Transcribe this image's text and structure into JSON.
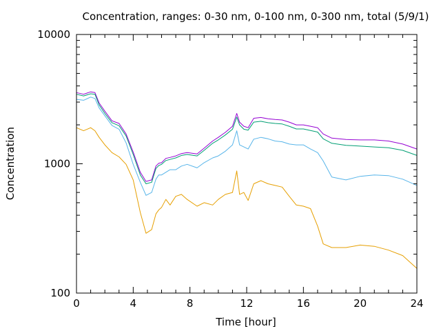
{
  "chart_data": {
    "type": "line",
    "title": "Concentration, ranges: 0-30 nm, 0-100 nm, 0-300 nm, total (5/9/1)",
    "xlabel": "Time [hour]",
    "ylabel": "Concentration",
    "xlim": [
      0,
      24
    ],
    "ylim": [
      100,
      10000
    ],
    "yscale": "log",
    "grid": false,
    "legend": "none",
    "xticks": [
      0,
      4,
      8,
      12,
      16,
      20,
      24
    ],
    "xtick_labels": [
      "0",
      "4",
      "8",
      "12",
      "16",
      "20",
      "24"
    ],
    "yticks": [
      100,
      1000,
      10000
    ],
    "ytick_labels": [
      "100",
      "1000",
      "10000"
    ],
    "series": [
      {
        "color": "#9400d3",
        "x": [
          0,
          0.5,
          1.0,
          1.3,
          1.6,
          2.0,
          2.5,
          3.0,
          3.5,
          4.0,
          4.5,
          4.9,
          5.3,
          5.6,
          5.8,
          6.0,
          6.3,
          6.6,
          7.0,
          7.4,
          7.8,
          8.5,
          9.0,
          9.6,
          10.0,
          10.5,
          11.0,
          11.3,
          11.5,
          11.8,
          12.1,
          12.5,
          13.0,
          13.5,
          14.0,
          14.5,
          15.0,
          15.5,
          16.0,
          16.5,
          17.0,
          17.4,
          18.0,
          19.0,
          20.0,
          21.0,
          22.0,
          23.0,
          24.0
        ],
        "y": [
          3550,
          3450,
          3600,
          3550,
          2950,
          2550,
          2150,
          2050,
          1700,
          1230,
          860,
          730,
          750,
          960,
          1010,
          1020,
          1100,
          1120,
          1150,
          1200,
          1220,
          1190,
          1320,
          1500,
          1600,
          1750,
          1950,
          2450,
          2100,
          1950,
          1900,
          2250,
          2280,
          2230,
          2200,
          2180,
          2100,
          2000,
          2000,
          1950,
          1900,
          1700,
          1580,
          1540,
          1530,
          1530,
          1500,
          1420,
          1300
        ]
      },
      {
        "color": "#009e73",
        "x": [
          0,
          0.5,
          1.0,
          1.3,
          1.6,
          2.0,
          2.5,
          3.0,
          3.5,
          4.0,
          4.5,
          4.9,
          5.3,
          5.6,
          5.8,
          6.0,
          6.3,
          6.6,
          7.0,
          7.4,
          7.8,
          8.5,
          9.0,
          9.6,
          10.0,
          10.5,
          11.0,
          11.3,
          11.5,
          11.8,
          12.1,
          12.5,
          13.0,
          13.5,
          14.0,
          14.5,
          15.0,
          15.5,
          16.0,
          16.5,
          17.0,
          17.4,
          18.0,
          19.0,
          20.0,
          21.0,
          22.0,
          23.0,
          24.0
        ],
        "y": [
          3450,
          3350,
          3480,
          3450,
          2850,
          2450,
          2080,
          1970,
          1640,
          1180,
          820,
          700,
          720,
          920,
          970,
          990,
          1060,
          1080,
          1110,
          1160,
          1180,
          1150,
          1270,
          1440,
          1530,
          1670,
          1850,
          2300,
          2000,
          1850,
          1820,
          2100,
          2130,
          2080,
          2050,
          2030,
          1950,
          1860,
          1860,
          1810,
          1760,
          1560,
          1440,
          1390,
          1370,
          1350,
          1330,
          1270,
          1160
        ]
      },
      {
        "color": "#56b4e9",
        "x": [
          0,
          0.5,
          1.0,
          1.3,
          1.6,
          2.0,
          2.5,
          3.0,
          3.5,
          4.0,
          4.5,
          4.9,
          5.3,
          5.6,
          5.8,
          6.0,
          6.3,
          6.6,
          7.0,
          7.4,
          7.8,
          8.5,
          9.0,
          9.6,
          10.0,
          10.5,
          11.0,
          11.3,
          11.5,
          11.8,
          12.1,
          12.5,
          13.0,
          13.5,
          14.0,
          14.5,
          15.0,
          15.5,
          16.0,
          16.5,
          17.0,
          17.4,
          18.0,
          19.0,
          20.0,
          21.0,
          22.0,
          23.0,
          24.0
        ],
        "y": [
          3150,
          3100,
          3280,
          3200,
          2700,
          2350,
          1980,
          1850,
          1450,
          990,
          720,
          570,
          600,
          760,
          820,
          820,
          860,
          900,
          900,
          960,
          990,
          930,
          1020,
          1110,
          1150,
          1250,
          1400,
          1800,
          1400,
          1350,
          1300,
          1550,
          1600,
          1560,
          1500,
          1480,
          1420,
          1400,
          1400,
          1300,
          1220,
          1050,
          790,
          750,
          800,
          820,
          810,
          760,
          680
        ]
      },
      {
        "color": "#e69f00",
        "x": [
          0,
          0.5,
          1.0,
          1.3,
          1.6,
          2.0,
          2.5,
          3.0,
          3.5,
          4.0,
          4.5,
          4.9,
          5.3,
          5.6,
          5.8,
          6.0,
          6.3,
          6.6,
          7.0,
          7.4,
          7.8,
          8.5,
          9.0,
          9.6,
          10.0,
          10.5,
          11.0,
          11.3,
          11.5,
          11.8,
          12.1,
          12.5,
          13.0,
          13.5,
          14.0,
          14.5,
          15.0,
          15.5,
          16.0,
          16.5,
          17.0,
          17.4,
          18.0,
          19.0,
          20.0,
          21.0,
          22.0,
          23.0,
          24.0
        ],
        "y": [
          1900,
          1800,
          1900,
          1800,
          1600,
          1400,
          1220,
          1130,
          990,
          750,
          420,
          290,
          310,
          410,
          440,
          460,
          530,
          480,
          560,
          580,
          530,
          470,
          500,
          480,
          530,
          580,
          600,
          880,
          580,
          600,
          520,
          700,
          740,
          700,
          680,
          660,
          560,
          480,
          470,
          450,
          330,
          240,
          225,
          225,
          235,
          230,
          215,
          195,
          155
        ]
      }
    ]
  }
}
